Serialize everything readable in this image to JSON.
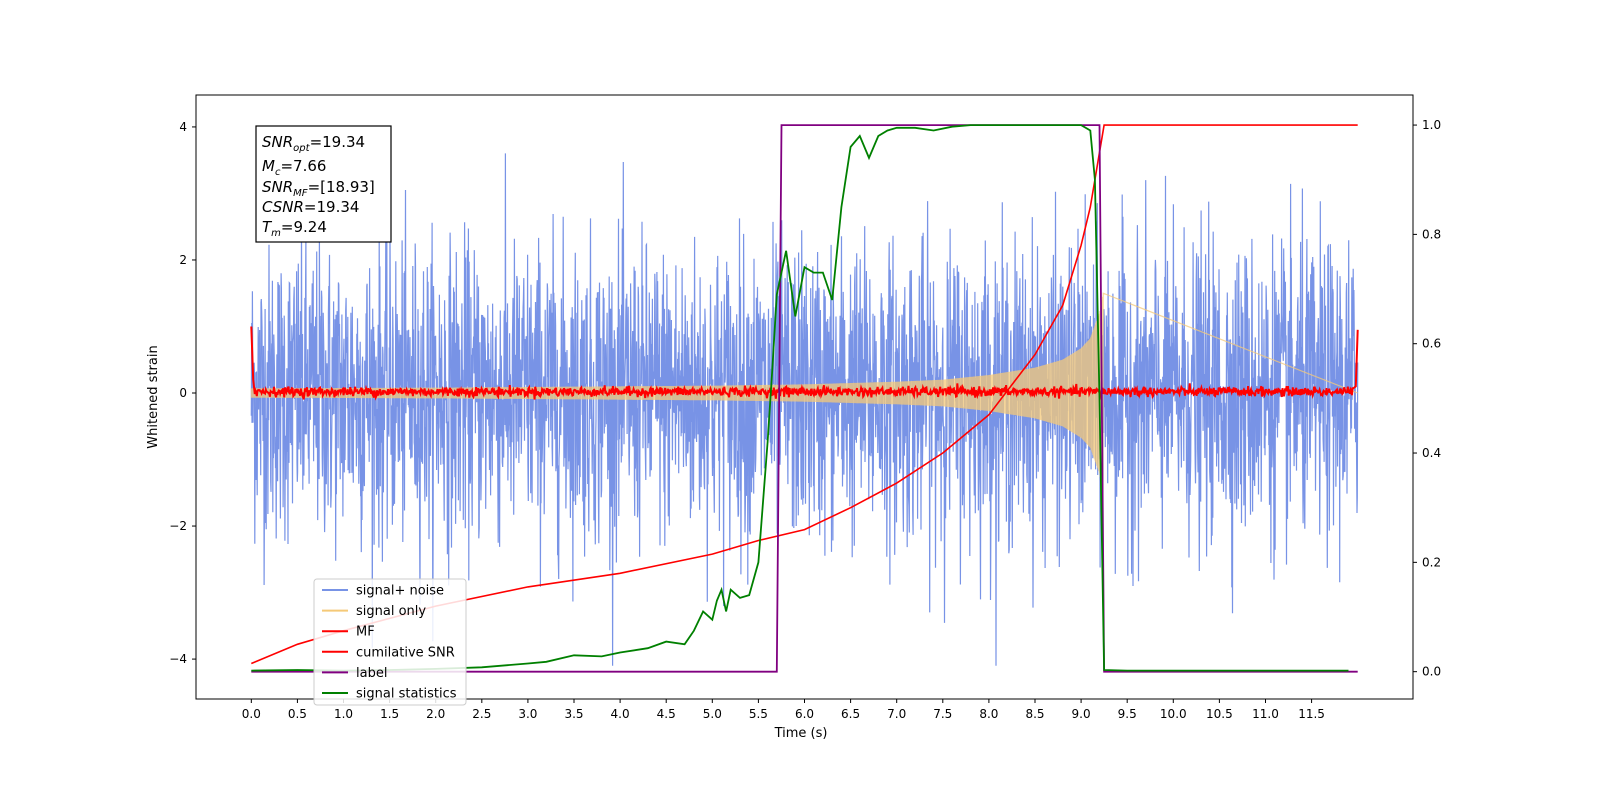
{
  "chart_data": {
    "type": "line",
    "xlabel": "Time (s)",
    "ylabel": "Whitened strain",
    "xlim": [
      -0.6,
      12.6
    ],
    "ylim": [
      -4.6,
      4.48
    ],
    "ylim_right": [
      -0.05,
      1.055
    ],
    "x_ticks": [
      "0.0",
      "0.5",
      "1.0",
      "1.5",
      "2.0",
      "2.5",
      "3.0",
      "3.5",
      "4.0",
      "4.5",
      "5.0",
      "5.5",
      "6.0",
      "6.5",
      "7.0",
      "7.5",
      "8.0",
      "8.5",
      "9.0",
      "9.5",
      "10.0",
      "10.5",
      "11.0",
      "11.5"
    ],
    "y_ticks_left": [
      "−4",
      "−2",
      "0",
      "2",
      "4"
    ],
    "y_ticks_right": [
      "0.0",
      "0.2",
      "0.4",
      "0.6",
      "0.8",
      "1.0"
    ],
    "legend_position": "lower-left",
    "grid": false,
    "annotation": {
      "snr_opt": "19.34",
      "mc": "7.66",
      "snr_mf": "[18.93]",
      "csnr": "19.34",
      "tm": "9.24"
    },
    "series": [
      {
        "name": "signal+ noise",
        "axis": "left",
        "color": "#7893e6",
        "note": "whitened noise, roughly ±1σ band with spikes to about ±3.5; range x 0.0–12.0",
        "x_range": [
          0.0,
          12.0
        ]
      },
      {
        "name": "signal only",
        "axis": "left",
        "color": "#f5c978",
        "envelope": {
          "x": [
            0.0,
            2.0,
            4.0,
            5.0,
            6.0,
            7.0,
            7.5,
            8.0,
            8.5,
            8.8,
            9.0,
            9.1,
            9.2,
            9.24
          ],
          "amp": [
            0.07,
            0.08,
            0.1,
            0.11,
            0.13,
            0.17,
            0.2,
            0.27,
            0.38,
            0.5,
            0.67,
            0.82,
            1.2,
            1.5
          ]
        }
      },
      {
        "name": "MF",
        "axis": "left",
        "color": "#ff0000",
        "note": "matched-filter output near 0 with small noise; 1.0 at both ends",
        "x_range": [
          0.0,
          12.0
        ]
      },
      {
        "name": "cumilative SNR",
        "axis": "right",
        "color": "#ff0000",
        "x": [
          0.0,
          0.5,
          1.0,
          2.0,
          3.0,
          4.0,
          5.0,
          5.5,
          6.0,
          6.5,
          7.0,
          7.5,
          8.0,
          8.5,
          8.8,
          9.0,
          9.1,
          9.2,
          9.25,
          12.0
        ],
        "values": [
          0.015,
          0.05,
          0.075,
          0.12,
          0.155,
          0.18,
          0.215,
          0.24,
          0.26,
          0.3,
          0.345,
          0.4,
          0.47,
          0.58,
          0.67,
          0.78,
          0.85,
          0.95,
          1.0,
          1.0
        ]
      },
      {
        "name": "label",
        "axis": "right",
        "color": "#800080",
        "x": [
          0.0,
          5.7,
          5.75,
          9.2,
          9.25,
          12.0
        ],
        "values": [
          0.0,
          0.0,
          1.0,
          1.0,
          0.0,
          0.0
        ]
      },
      {
        "name": "signal statistics",
        "axis": "right",
        "color": "#008000",
        "x": [
          0.0,
          0.5,
          1.0,
          1.5,
          2.0,
          2.5,
          3.0,
          3.2,
          3.5,
          3.8,
          4.0,
          4.3,
          4.5,
          4.7,
          4.8,
          4.9,
          5.0,
          5.05,
          5.1,
          5.15,
          5.2,
          5.3,
          5.4,
          5.5,
          5.6,
          5.65,
          5.7,
          5.8,
          5.9,
          6.0,
          6.1,
          6.2,
          6.3,
          6.4,
          6.5,
          6.6,
          6.7,
          6.8,
          6.9,
          7.0,
          7.2,
          7.4,
          7.6,
          7.8,
          8.0,
          8.5,
          9.0,
          9.1,
          9.15,
          9.2,
          9.25,
          9.5,
          11.9
        ],
        "values": [
          0.002,
          0.003,
          0.002,
          0.003,
          0.005,
          0.008,
          0.015,
          0.018,
          0.03,
          0.028,
          0.035,
          0.043,
          0.055,
          0.05,
          0.075,
          0.11,
          0.095,
          0.13,
          0.15,
          0.11,
          0.15,
          0.135,
          0.14,
          0.2,
          0.42,
          0.55,
          0.69,
          0.77,
          0.65,
          0.74,
          0.73,
          0.73,
          0.68,
          0.85,
          0.96,
          0.98,
          0.94,
          0.98,
          0.99,
          0.995,
          0.995,
          0.99,
          0.997,
          1.0,
          1.0,
          1.0,
          1.0,
          0.99,
          0.9,
          0.5,
          0.003,
          0.002,
          0.002
        ]
      }
    ]
  }
}
